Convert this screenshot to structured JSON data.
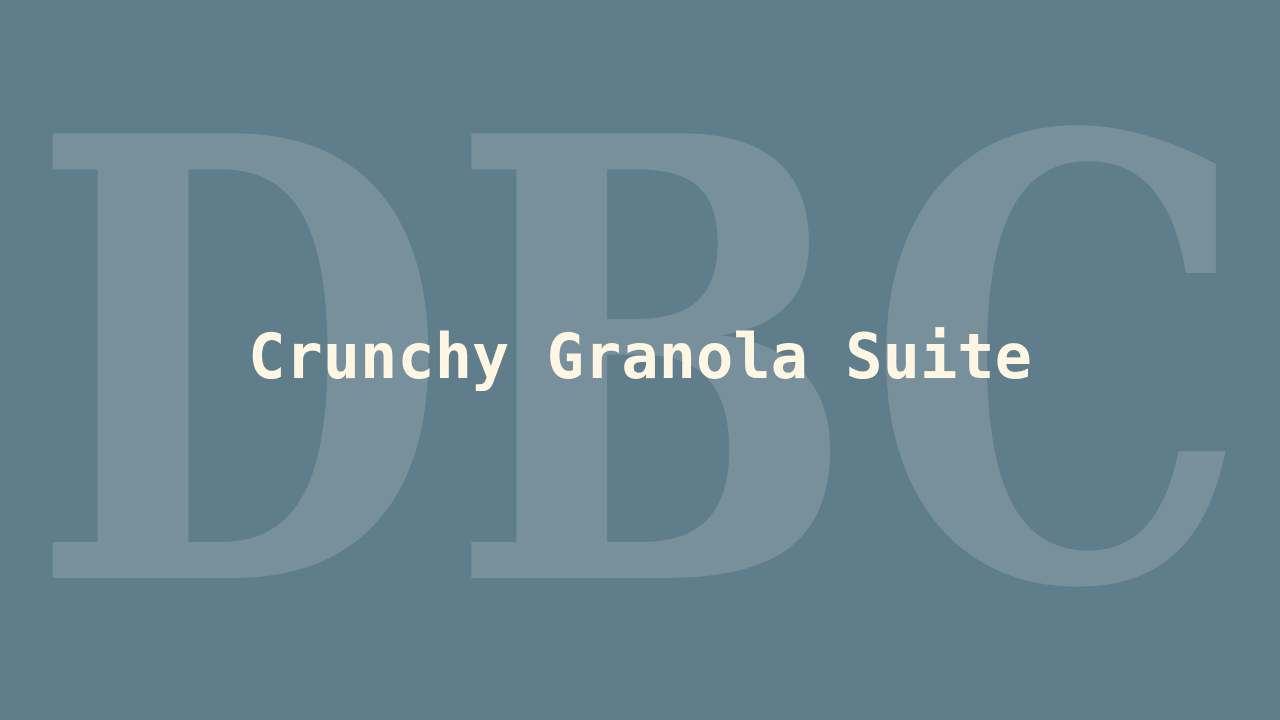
{
  "background_color": "#607d8b",
  "watermark": {
    "text": "DBC",
    "color": "#ffffff"
  },
  "title": {
    "text": "Crunchy Granola Suite",
    "color": "#fff7e3"
  }
}
